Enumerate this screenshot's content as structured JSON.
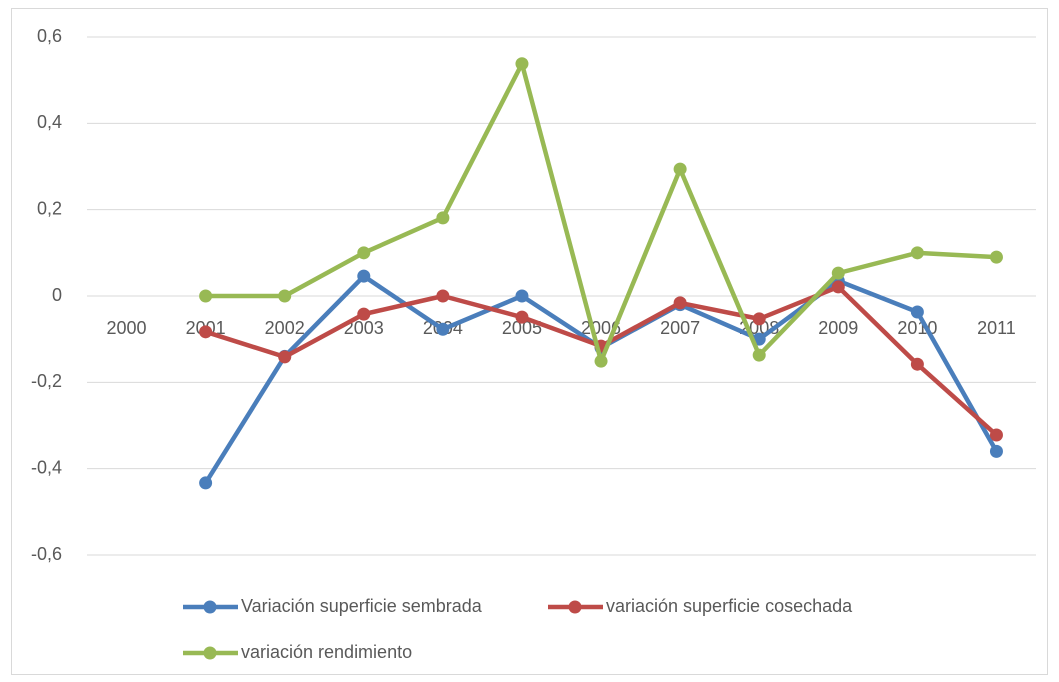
{
  "chart_data": {
    "type": "line",
    "categories": [
      "2000",
      "2001",
      "2002",
      "2003",
      "2004",
      "2005",
      "2006",
      "2007",
      "2008",
      "2009",
      "2010",
      "2011"
    ],
    "series": [
      {
        "name": "Variación superficie sembrada",
        "color": "#4a7ebb",
        "values": [
          null,
          -0.433,
          -0.14,
          0.046,
          -0.077,
          0,
          -0.12,
          -0.02,
          -0.1,
          0.035,
          -0.037,
          -0.36
        ]
      },
      {
        "name": "variación superficie cosechada",
        "color": "#be4b48",
        "values": [
          null,
          -0.083,
          -0.141,
          -0.042,
          0,
          -0.049,
          -0.116,
          -0.016,
          -0.053,
          0.021,
          -0.158,
          -0.322
        ]
      },
      {
        "name": "variación rendimiento",
        "color": "#98b954",
        "values": [
          null,
          0,
          0,
          0.1,
          0.181,
          0.538,
          -0.151,
          0.294,
          -0.137,
          0.053,
          0.1,
          0.09
        ]
      }
    ],
    "ylim": [
      -0.6,
      0.6
    ],
    "yticks": [
      {
        "value": -0.6,
        "label": "-0,6"
      },
      {
        "value": -0.4,
        "label": "-0,4"
      },
      {
        "value": -0.2,
        "label": "-0,2"
      },
      0,
      {
        "value": 0.2,
        "label": "0,2"
      },
      {
        "value": 0.4,
        "label": "0,4"
      },
      {
        "value": 0.6,
        "label": "0,6"
      }
    ],
    "grid": true,
    "legend": "bottom"
  }
}
